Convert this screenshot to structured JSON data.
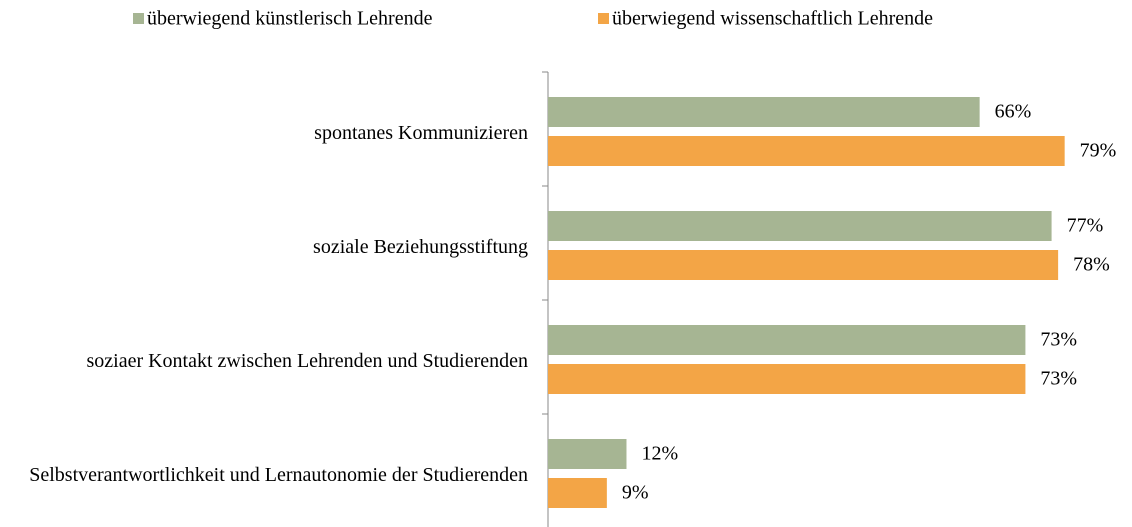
{
  "chart_data": {
    "type": "bar",
    "orientation": "horizontal",
    "categories": [
      "spontanes Kommunizieren",
      "soziale Beziehungsstiftung",
      "soziaer Kontakt zwischen Lehrenden und Studierenden",
      "Selbstverantwortlichkeit und Lernautonomie der Studierenden"
    ],
    "series": [
      {
        "name": "überwiegend künstlerisch Lehrende",
        "color": "#a6b593",
        "values": [
          66,
          77,
          73,
          12
        ],
        "value_labels": [
          "66%",
          "77%",
          "73%",
          "12%"
        ]
      },
      {
        "name": "überwiegend wissenschaftlich Lehrende",
        "color": "#f3a546",
        "values": [
          79,
          78,
          73,
          9
        ],
        "value_labels": [
          "79%",
          "78%",
          "73%",
          "9%"
        ]
      }
    ],
    "legend": "top"
  }
}
